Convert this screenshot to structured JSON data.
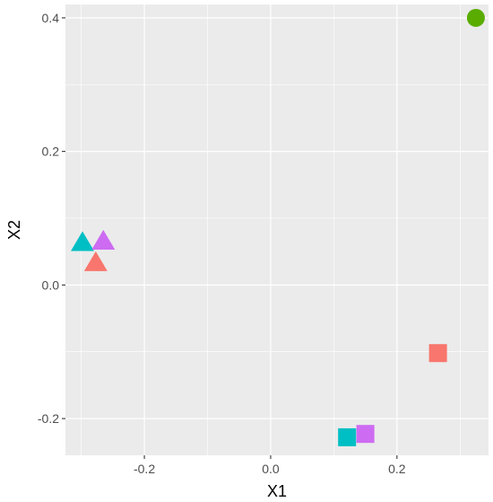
{
  "chart_data": {
    "type": "scatter",
    "xlabel": "X1",
    "ylabel": "X2",
    "xlim": [
      -0.325,
      0.345
    ],
    "ylim": [
      -0.255,
      0.42
    ],
    "x_ticks": [
      -0.2,
      0.0,
      0.2
    ],
    "x_tick_labels": [
      "-0.2",
      "0.0",
      "0.2"
    ],
    "y_ticks": [
      -0.2,
      0.0,
      0.2,
      0.4
    ],
    "y_tick_labels": [
      "-0.2",
      "0.0",
      "0.2",
      "0.4"
    ],
    "grid": true,
    "legend": "none",
    "points": [
      {
        "x": 0.325,
        "y": 0.4,
        "shape": "circle",
        "color": "#5aad00"
      },
      {
        "x": -0.298,
        "y": 0.063,
        "shape": "triangle",
        "color": "#00bfc4"
      },
      {
        "x": -0.265,
        "y": 0.065,
        "shape": "triangle",
        "color": "#cd6cf2"
      },
      {
        "x": -0.277,
        "y": 0.033,
        "shape": "triangle",
        "color": "#f8766d"
      },
      {
        "x": 0.265,
        "y": -0.102,
        "shape": "square",
        "color": "#f8766d"
      },
      {
        "x": 0.121,
        "y": -0.228,
        "shape": "square",
        "color": "#00bfc4"
      },
      {
        "x": 0.15,
        "y": -0.223,
        "shape": "square",
        "color": "#cd6cf2"
      }
    ]
  }
}
